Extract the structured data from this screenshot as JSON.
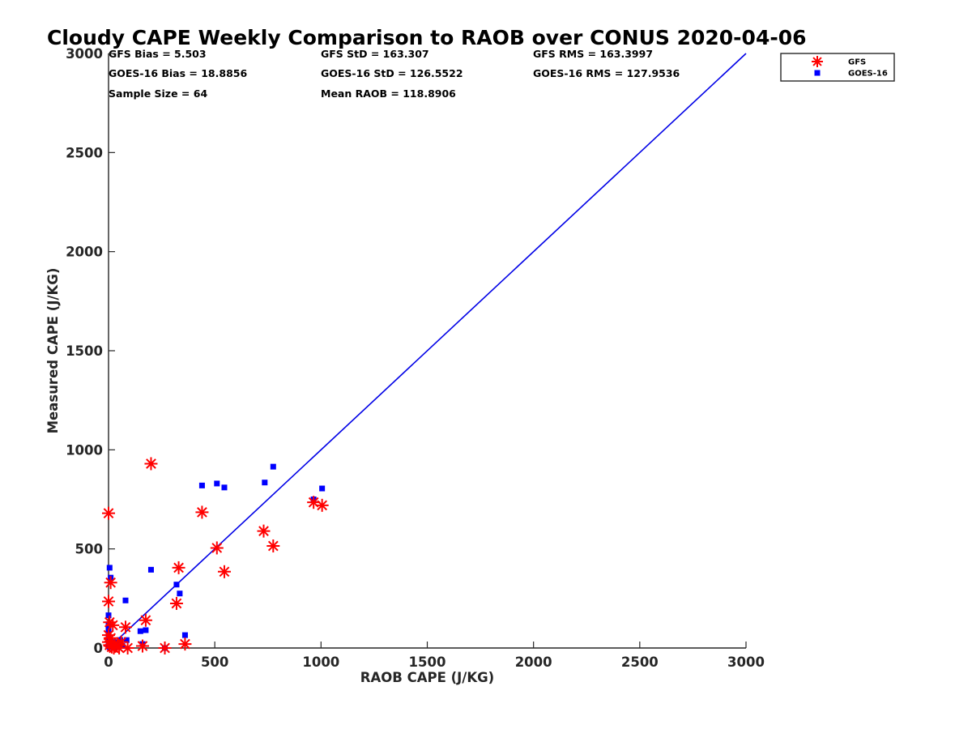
{
  "chart_data": {
    "type": "scatter",
    "title": "Cloudy CAPE Weekly Comparison to RAOB over CONUS 2020-04-06",
    "xlabel": "RAOB CAPE (J/KG)",
    "ylabel": "Measured CAPE (J/KG)",
    "xlim": [
      0,
      3000
    ],
    "ylim": [
      0,
      3000
    ],
    "xticks": [
      "0",
      "500",
      "1000",
      "1500",
      "2000",
      "2500",
      "3000"
    ],
    "yticks": [
      "0",
      "500",
      "1000",
      "1500",
      "2000",
      "2500",
      "3000"
    ],
    "tick_values": [
      0,
      500,
      1000,
      1500,
      2000,
      2500,
      3000
    ],
    "grid": false,
    "legend_position": "top-right",
    "stats": [
      [
        "GFS Bias = 5.503",
        "GFS StD = 163.307",
        "GFS RMS = 163.3997"
      ],
      [
        "GOES-16 Bias = 18.8856",
        "GOES-16 StD = 126.5522",
        "GOES-16 RMS = 127.9536"
      ],
      [
        "Sample Size = 64",
        "Mean RAOB = 118.8906",
        ""
      ]
    ],
    "reference_line": {
      "x": [
        0,
        3000
      ],
      "y": [
        0,
        3000
      ],
      "color": "#0000e6"
    },
    "series": [
      {
        "name": "GFS",
        "marker": "asterisk",
        "color": "#ff0000",
        "points": [
          [
            0,
            680
          ],
          [
            10,
            330
          ],
          [
            0,
            235
          ],
          [
            5,
            130
          ],
          [
            20,
            115
          ],
          [
            0,
            65
          ],
          [
            10,
            50
          ],
          [
            0,
            30
          ],
          [
            5,
            15
          ],
          [
            15,
            5
          ],
          [
            25,
            0
          ],
          [
            40,
            10
          ],
          [
            60,
            30
          ],
          [
            80,
            105
          ],
          [
            90,
            0
          ],
          [
            160,
            10
          ],
          [
            175,
            140
          ],
          [
            200,
            930
          ],
          [
            265,
            0
          ],
          [
            320,
            225
          ],
          [
            330,
            405
          ],
          [
            360,
            20
          ],
          [
            440,
            685
          ],
          [
            510,
            505
          ],
          [
            545,
            385
          ],
          [
            730,
            590
          ],
          [
            775,
            515
          ],
          [
            965,
            735
          ],
          [
            1005,
            720
          ],
          [
            50,
            0
          ],
          [
            30,
            20
          ]
        ]
      },
      {
        "name": "GOES-16",
        "marker": "square",
        "color": "#0000ff",
        "points": [
          [
            5,
            405
          ],
          [
            10,
            355
          ],
          [
            0,
            165
          ],
          [
            0,
            120
          ],
          [
            0,
            100
          ],
          [
            0,
            80
          ],
          [
            0,
            60
          ],
          [
            0,
            40
          ],
          [
            0,
            20
          ],
          [
            5,
            5
          ],
          [
            15,
            10
          ],
          [
            25,
            30
          ],
          [
            30,
            0
          ],
          [
            45,
            15
          ],
          [
            55,
            40
          ],
          [
            65,
            10
          ],
          [
            80,
            240
          ],
          [
            85,
            40
          ],
          [
            150,
            85
          ],
          [
            160,
            20
          ],
          [
            175,
            90
          ],
          [
            200,
            395
          ],
          [
            265,
            0
          ],
          [
            320,
            320
          ],
          [
            335,
            275
          ],
          [
            360,
            65
          ],
          [
            440,
            820
          ],
          [
            510,
            830
          ],
          [
            545,
            810
          ],
          [
            735,
            835
          ],
          [
            775,
            915
          ],
          [
            965,
            750
          ],
          [
            1005,
            805
          ]
        ]
      }
    ]
  }
}
